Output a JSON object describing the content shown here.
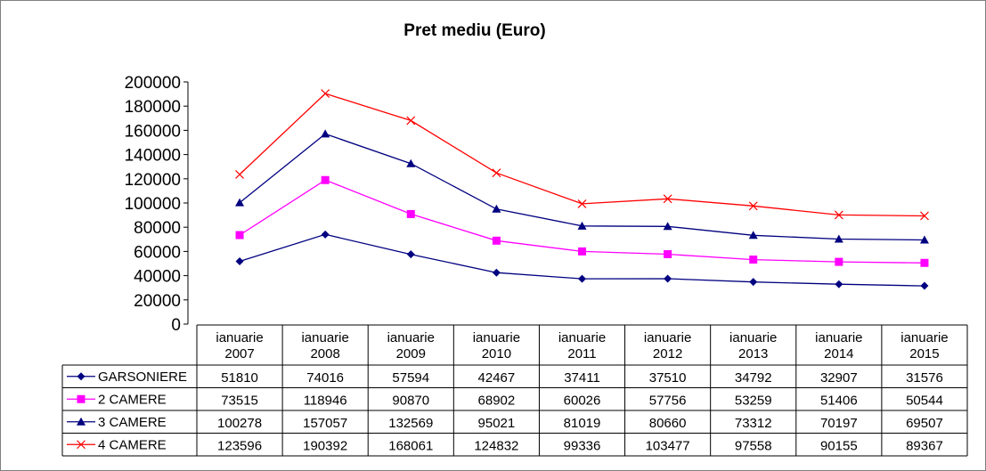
{
  "chart_data": {
    "type": "line",
    "title": "Pret mediu (Euro)",
    "categories": [
      [
        "ianuarie",
        "2007"
      ],
      [
        "ianuarie",
        "2008"
      ],
      [
        "ianuarie",
        "2009"
      ],
      [
        "ianuarie",
        "2010"
      ],
      [
        "ianuarie",
        "2011"
      ],
      [
        "ianuarie",
        "2012"
      ],
      [
        "ianuarie",
        "2013"
      ],
      [
        "ianuarie",
        "2014"
      ],
      [
        "ianuarie",
        "2015"
      ]
    ],
    "ylim": [
      0,
      200000
    ],
    "yticks": [
      0,
      20000,
      40000,
      60000,
      80000,
      100000,
      120000,
      140000,
      160000,
      180000,
      200000
    ],
    "grid": false,
    "legend": "data-table",
    "series": [
      {
        "name": "GARSONIERE",
        "color": "#000080",
        "marker": "diamond",
        "values": [
          51810,
          74016,
          57594,
          42467,
          37411,
          37510,
          34792,
          32907,
          31576
        ]
      },
      {
        "name": "2 CAMERE",
        "color": "#ff00ff",
        "marker": "square",
        "values": [
          73515,
          118946,
          90870,
          68902,
          60026,
          57756,
          53259,
          51406,
          50544
        ]
      },
      {
        "name": "3 CAMERE",
        "color": "#000080",
        "marker": "triangle",
        "values": [
          100278,
          157057,
          132569,
          95021,
          81019,
          80660,
          73312,
          70197,
          69507
        ]
      },
      {
        "name": "4 CAMERE",
        "color": "#ff0000",
        "marker": "x",
        "values": [
          123596,
          190392,
          168061,
          124832,
          99336,
          103477,
          97558,
          90155,
          89367
        ]
      }
    ]
  }
}
